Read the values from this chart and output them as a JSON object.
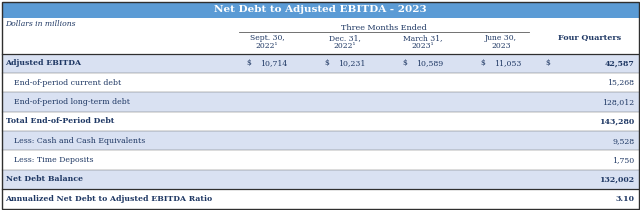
{
  "title": "Net Debt to Adjusted EBITDA - 2023",
  "title_bg": "#5b9bd5",
  "title_color": "#ffffff",
  "subtitle": "Dollars in millions",
  "col_group_label": "Three Months Ended",
  "col_headers_line1": [
    "Sept. 30,",
    "Dec. 31,",
    "March 31,",
    "June 30,",
    ""
  ],
  "col_headers_line2": [
    "2022¹",
    "2022¹",
    "2023¹",
    "2023",
    "Four Quarters"
  ],
  "rows": [
    {
      "label": "Adjusted EBITDA",
      "bold": true,
      "indent": false,
      "show_dollar": true,
      "values": [
        "10,714",
        "10,231",
        "10,589",
        "11,053"
      ],
      "four_q": "42,587",
      "four_q_dollar": true,
      "bg": "#d9e1f2"
    },
    {
      "label": "End-of-period current debt",
      "bold": false,
      "indent": true,
      "show_dollar": false,
      "values": [
        "",
        "",
        "",
        ""
      ],
      "four_q": "15,268",
      "four_q_dollar": false,
      "bg": "#ffffff"
    },
    {
      "label": "End-of-period long-term debt",
      "bold": false,
      "indent": true,
      "show_dollar": false,
      "values": [
        "",
        "",
        "",
        ""
      ],
      "four_q": "128,012",
      "four_q_dollar": false,
      "bg": "#d9e1f2"
    },
    {
      "label": "Total End-of-Period Debt",
      "bold": true,
      "indent": false,
      "show_dollar": false,
      "values": [
        "",
        "",
        "",
        ""
      ],
      "four_q": "143,280",
      "four_q_dollar": false,
      "bg": "#ffffff"
    },
    {
      "label": "Less: Cash and Cash Equivalents",
      "bold": false,
      "indent": true,
      "show_dollar": false,
      "values": [
        "",
        "",
        "",
        ""
      ],
      "four_q": "9,528",
      "four_q_dollar": false,
      "bg": "#d9e1f2"
    },
    {
      "label": "Less: Time Deposits",
      "bold": false,
      "indent": true,
      "show_dollar": false,
      "values": [
        "",
        "",
        "",
        ""
      ],
      "four_q": "1,750",
      "four_q_dollar": false,
      "bg": "#ffffff"
    },
    {
      "label": "Net Debt Balance",
      "bold": true,
      "indent": false,
      "show_dollar": false,
      "values": [
        "",
        "",
        "",
        ""
      ],
      "four_q": "132,002",
      "four_q_dollar": false,
      "bg": "#d9e1f2"
    },
    {
      "label": "Annualized Net Debt to Adjusted EBITDA Ratio",
      "bold": true,
      "indent": false,
      "show_dollar": false,
      "values": [
        "",
        "",
        "",
        ""
      ],
      "four_q": "3.10",
      "four_q_dollar": false,
      "bg": "#ffffff"
    }
  ],
  "border_color": "#5b5b5b",
  "thick_border_color": "#2f2f2f",
  "text_color": "#1f3864",
  "header_text_color": "#1f3864",
  "fig_w": 6.4,
  "fig_h": 2.1,
  "dpi": 100
}
